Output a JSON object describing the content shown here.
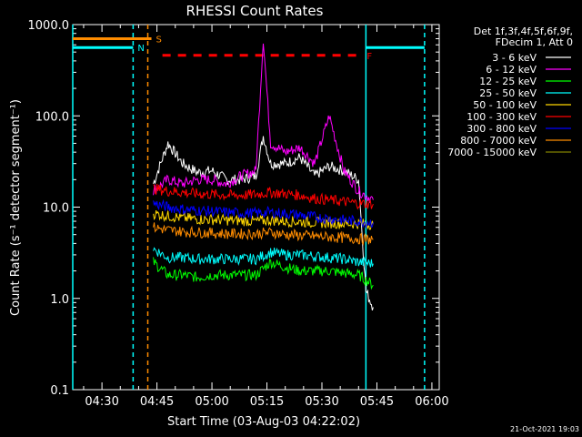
{
  "chart_data": {
    "type": "line",
    "title": "RHESSI Count Rates",
    "xlabel": "Start Time (03-Aug-03 04:22:02)",
    "ylabel": "Count Rate (s⁻¹ detector segment⁻¹)",
    "y_scale": "log",
    "ylim": [
      0.1,
      1000.0
    ],
    "xlim": [
      "04:22:02",
      "06:02:00"
    ],
    "x_ticks": [
      "04:30",
      "04:45",
      "05:00",
      "05:15",
      "05:30",
      "05:45",
      "06:00"
    ],
    "y_ticks": [
      "0.1",
      "1.0",
      "10.0",
      "100.0",
      "1000.0"
    ],
    "legend": {
      "placement": "top-right",
      "header": [
        "Det 1f,3f,4f,5f,6f,9f,",
        "FDecim 1, Att 0"
      ]
    },
    "series": [
      {
        "name": "3 - 6 keV",
        "color": "#ffffff",
        "x": [
          "04:44",
          "04:48",
          "04:52",
          "04:56",
          "05:00",
          "05:04",
          "05:08",
          "05:12",
          "05:14",
          "05:16",
          "05:20",
          "05:24",
          "05:28",
          "05:32",
          "05:36",
          "05:40",
          "05:42",
          "05:44"
        ],
        "values": [
          18,
          50,
          30,
          24,
          25,
          20,
          20,
          22,
          60,
          30,
          30,
          35,
          22,
          28,
          25,
          20,
          1.2,
          0.8
        ]
      },
      {
        "name": "6 - 12 keV",
        "color": "#ff00ff",
        "x": [
          "04:44",
          "04:48",
          "04:52",
          "04:56",
          "05:00",
          "05:04",
          "05:08",
          "05:12",
          "05:14",
          "05:16",
          "05:20",
          "05:24",
          "05:28",
          "05:32",
          "05:36",
          "05:40",
          "05:44"
        ],
        "values": [
          15,
          20,
          18,
          20,
          20,
          18,
          22,
          25,
          700,
          50,
          40,
          45,
          30,
          100,
          25,
          15,
          12
        ]
      },
      {
        "name": "12 - 25 keV",
        "color": "#00ff00",
        "x": [
          "04:44",
          "04:48",
          "04:52",
          "04:56",
          "05:00",
          "05:04",
          "05:08",
          "05:12",
          "05:16",
          "05:20",
          "05:24",
          "05:28",
          "05:32",
          "05:36",
          "05:40",
          "05:44"
        ],
        "values": [
          2.5,
          1.8,
          1.8,
          1.7,
          1.8,
          1.8,
          1.8,
          1.8,
          2.5,
          2.2,
          2.0,
          2.0,
          2.0,
          1.9,
          1.8,
          1.4
        ]
      },
      {
        "name": "25 - 50 keV",
        "color": "#00ffff",
        "x": [
          "04:44",
          "04:48",
          "04:52",
          "04:56",
          "05:00",
          "05:04",
          "05:08",
          "05:12",
          "05:16",
          "05:20",
          "05:24",
          "05:28",
          "05:32",
          "05:36",
          "05:40",
          "05:44"
        ],
        "values": [
          3.5,
          2.8,
          2.8,
          2.7,
          2.7,
          2.7,
          2.7,
          2.7,
          3.2,
          3.0,
          3.0,
          2.9,
          2.8,
          2.7,
          2.5,
          2.4
        ]
      },
      {
        "name": "50 - 100 keV",
        "color": "#ffd700",
        "x": [
          "04:44",
          "04:48",
          "04:52",
          "04:56",
          "05:00",
          "05:04",
          "05:08",
          "05:12",
          "05:16",
          "05:20",
          "05:24",
          "05:28",
          "05:32",
          "05:36",
          "05:40",
          "05:44"
        ],
        "values": [
          8.5,
          8.0,
          7.6,
          7.4,
          7.3,
          7.2,
          7.1,
          7.0,
          7.2,
          7.0,
          6.9,
          6.8,
          6.7,
          6.6,
          6.6,
          6.5
        ]
      },
      {
        "name": "100 - 300 keV",
        "color": "#ff0000",
        "x": [
          "04:44",
          "04:48",
          "04:52",
          "04:56",
          "05:00",
          "05:04",
          "05:08",
          "05:12",
          "05:16",
          "05:20",
          "05:24",
          "05:28",
          "05:32",
          "05:36",
          "05:40",
          "05:44"
        ],
        "values": [
          16,
          15,
          14.5,
          14,
          13.8,
          13.5,
          13.5,
          13.8,
          14.5,
          14,
          13.5,
          12.5,
          12,
          11.5,
          11,
          10.8
        ]
      },
      {
        "name": "300 - 800 keV",
        "color": "#0000ff",
        "x": [
          "04:44",
          "04:48",
          "04:52",
          "04:56",
          "05:00",
          "05:04",
          "05:08",
          "05:12",
          "05:16",
          "05:20",
          "05:24",
          "05:28",
          "05:32",
          "05:36",
          "05:40",
          "05:44"
        ],
        "values": [
          11,
          10,
          9.5,
          9.2,
          9,
          8.8,
          8.6,
          8.6,
          8.8,
          8.5,
          8.2,
          7.8,
          7.5,
          7.2,
          7.0,
          6.8
        ]
      },
      {
        "name": "800 - 7000 keV",
        "color": "#ff8c00",
        "x": [
          "04:44",
          "04:48",
          "04:52",
          "04:56",
          "05:00",
          "05:04",
          "05:08",
          "05:12",
          "05:16",
          "05:20",
          "05:24",
          "05:28",
          "05:32",
          "05:36",
          "05:40",
          "05:44"
        ],
        "values": [
          6.0,
          5.6,
          5.4,
          5.3,
          5.2,
          5.1,
          5.1,
          5.1,
          5.3,
          5.0,
          4.9,
          4.8,
          4.7,
          4.6,
          4.5,
          4.4
        ]
      },
      {
        "name": "7000 - 15000 keV",
        "color": "#808000",
        "x": [],
        "values": []
      }
    ],
    "annotations": [
      {
        "label": "S",
        "color": "#ff8c00",
        "x_start": "04:22:02",
        "x_end": "04:43:30",
        "y": 700
      },
      {
        "label": "N",
        "color": "#00ffff",
        "x_start": "04:22:02",
        "x_end": "04:38:30",
        "y": 560
      },
      {
        "label": "F",
        "color": "#ff0000",
        "x_start": "04:46:30",
        "x_end": "05:41:00",
        "y": 460
      },
      {
        "label": "",
        "color": "#00ffff",
        "x_start": "05:42:00",
        "x_end": "05:58:00",
        "y": 560
      }
    ],
    "vertical_markers": [
      {
        "x": "04:22:02",
        "color": "#00ffff",
        "style": "solid"
      },
      {
        "x": "04:38:30",
        "color": "#00ffff",
        "style": "dashed"
      },
      {
        "x": "04:42:30",
        "color": "#ff8c00",
        "style": "dashed"
      },
      {
        "x": "05:42:00",
        "color": "#00ffff",
        "style": "solid"
      },
      {
        "x": "05:58:00",
        "color": "#00ffff",
        "style": "dashed"
      }
    ]
  },
  "footer": {
    "timestamp": "21-Oct-2021 19:03"
  }
}
